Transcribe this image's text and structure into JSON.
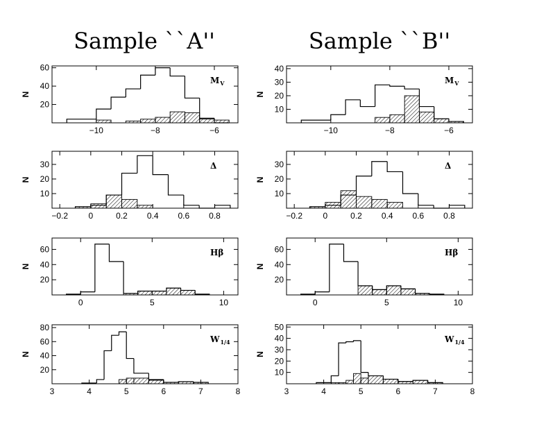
{
  "column_titles": [
    "Sample ``A''",
    "Sample ``B''"
  ],
  "chart_data": [
    {
      "type": "bar",
      "sample": "A",
      "panel": "Mv",
      "label": "M",
      "label_sub": "V",
      "ylabel": "N",
      "xlim": [
        -11.5,
        -5.2
      ],
      "ylim": [
        0,
        62
      ],
      "xticks": [
        -10,
        -8,
        -6
      ],
      "yticks": [
        20,
        40,
        60
      ],
      "edges": [
        -11,
        -10,
        -9.5,
        -9,
        -8.5,
        -8,
        -7.5,
        -7,
        -6.5,
        -6,
        -5.5
      ],
      "series": [
        {
          "style": "open",
          "values": [
            4,
            15,
            28,
            37,
            52,
            60,
            51,
            27,
            5,
            0
          ]
        },
        {
          "style": "hatched",
          "values": [
            0,
            3,
            0,
            2,
            4,
            6,
            12,
            11,
            4,
            3
          ]
        }
      ]
    },
    {
      "type": "bar",
      "sample": "B",
      "panel": "Mv",
      "label": "M",
      "label_sub": "V",
      "ylabel": "N",
      "xlim": [
        -11.5,
        -5.2
      ],
      "ylim": [
        0,
        42
      ],
      "xticks": [
        -10,
        -8,
        -6
      ],
      "yticks": [
        10,
        20,
        30,
        40
      ],
      "edges": [
        -11,
        -10,
        -9.5,
        -9,
        -8.5,
        -8,
        -7.5,
        -7,
        -6.5,
        -6,
        -5.5
      ],
      "series": [
        {
          "style": "open",
          "values": [
            2,
            6,
            17,
            12,
            28,
            27,
            25,
            12,
            3,
            1
          ]
        },
        {
          "style": "hatched",
          "values": [
            0,
            0,
            0,
            0,
            4,
            6,
            20,
            8,
            3,
            1
          ]
        }
      ]
    },
    {
      "type": "bar",
      "sample": "A",
      "panel": "Delta",
      "label": "Δ",
      "label_sub": "",
      "ylabel": "N",
      "xlim": [
        -0.25,
        0.95
      ],
      "ylim": [
        0,
        39
      ],
      "xticks": [
        -0.2,
        0,
        0.2,
        0.4,
        0.6,
        0.8
      ],
      "yticks": [
        10,
        20,
        30
      ],
      "edges": [
        -0.1,
        0,
        0.1,
        0.2,
        0.3,
        0.4,
        0.5,
        0.6,
        0.7,
        0.8,
        0.9
      ],
      "series": [
        {
          "style": "open",
          "values": [
            1,
            2,
            9,
            24,
            36,
            23,
            9,
            2,
            0,
            2
          ]
        },
        {
          "style": "hatched",
          "values": [
            1,
            3,
            9,
            6,
            2,
            0,
            0,
            0,
            0,
            0
          ]
        }
      ]
    },
    {
      "type": "bar",
      "sample": "B",
      "panel": "Delta",
      "label": "Δ",
      "label_sub": "",
      "ylabel": "N",
      "xlim": [
        -0.25,
        0.95
      ],
      "ylim": [
        0,
        39
      ],
      "xticks": [
        -0.2,
        0,
        0.2,
        0.4,
        0.6,
        0.8
      ],
      "yticks": [
        10,
        20,
        30
      ],
      "edges": [
        -0.1,
        0,
        0.1,
        0.2,
        0.3,
        0.4,
        0.5,
        0.6,
        0.7,
        0.8,
        0.9
      ],
      "series": [
        {
          "style": "open",
          "values": [
            1,
            2,
            9,
            22,
            32,
            25,
            10,
            2,
            0,
            2
          ]
        },
        {
          "style": "hatched",
          "values": [
            1,
            4,
            12,
            8,
            6,
            4,
            0,
            0,
            0,
            0
          ]
        }
      ]
    },
    {
      "type": "bar",
      "sample": "A",
      "panel": "Hbeta",
      "label": "Hβ",
      "label_sub": "",
      "ylabel": "N",
      "xlim": [
        -2,
        11
      ],
      "ylim": [
        0,
        75
      ],
      "xticks": [
        0,
        5,
        10
      ],
      "yticks": [
        20,
        40,
        60
      ],
      "edges": [
        -1,
        0,
        1,
        2,
        3,
        4,
        5,
        6,
        7,
        8,
        9
      ],
      "series": [
        {
          "style": "open",
          "values": [
            1,
            4,
            67,
            44,
            2,
            5,
            5,
            9,
            6,
            1
          ]
        },
        {
          "style": "hatched",
          "values": [
            0,
            0,
            0,
            0,
            2,
            5,
            5,
            9,
            6,
            1
          ]
        }
      ]
    },
    {
      "type": "bar",
      "sample": "B",
      "panel": "Hbeta",
      "label": "Hβ",
      "label_sub": "",
      "ylabel": "N",
      "xlim": [
        -2,
        11
      ],
      "ylim": [
        0,
        75
      ],
      "xticks": [
        0,
        5,
        10
      ],
      "yticks": [
        20,
        40,
        60
      ],
      "edges": [
        -1,
        0,
        1,
        2,
        3,
        4,
        5,
        6,
        7,
        8,
        9
      ],
      "series": [
        {
          "style": "open",
          "values": [
            1,
            4,
            67,
            44,
            12,
            7,
            12,
            8,
            2,
            1
          ]
        },
        {
          "style": "hatched",
          "values": [
            0,
            0,
            0,
            0,
            12,
            7,
            12,
            8,
            2,
            1
          ]
        }
      ]
    },
    {
      "type": "bar",
      "sample": "A",
      "panel": "W1/4",
      "label": "W",
      "label_sub": "1/4",
      "ylabel": "N",
      "xlim": [
        3,
        8
      ],
      "ylim": [
        0,
        84
      ],
      "xticks": [
        3,
        4,
        5,
        6,
        7,
        8
      ],
      "yticks": [
        20,
        40,
        60,
        80
      ],
      "edges": [
        3.8,
        4.2,
        4.4,
        4.6,
        4.8,
        5.0,
        5.2,
        5.6,
        6.0,
        6.4,
        6.8,
        7.2
      ],
      "series": [
        {
          "style": "open",
          "values": [
            1,
            6,
            47,
            69,
            74,
            36,
            15,
            6,
            2,
            3,
            2
          ]
        },
        {
          "style": "hatched",
          "values": [
            0,
            0,
            0,
            0,
            6,
            8,
            8,
            5,
            2,
            3,
            2
          ]
        }
      ]
    },
    {
      "type": "bar",
      "sample": "B",
      "panel": "W1/4",
      "label": "W",
      "label_sub": "1/4",
      "ylabel": "N",
      "xlim": [
        3,
        8
      ],
      "ylim": [
        0,
        52
      ],
      "xticks": [
        3,
        4,
        5,
        6,
        7,
        8
      ],
      "yticks": [
        10,
        20,
        30,
        40,
        50
      ],
      "edges": [
        3.8,
        4.2,
        4.4,
        4.6,
        4.8,
        5.0,
        5.2,
        5.6,
        6.0,
        6.4,
        6.8,
        7.2
      ],
      "series": [
        {
          "style": "open",
          "values": [
            1,
            7,
            36,
            37,
            38,
            10,
            7,
            4,
            2,
            3,
            1
          ]
        },
        {
          "style": "hatched",
          "values": [
            0,
            1,
            1,
            3,
            9,
            5,
            7,
            4,
            2,
            3,
            1
          ]
        }
      ]
    }
  ]
}
